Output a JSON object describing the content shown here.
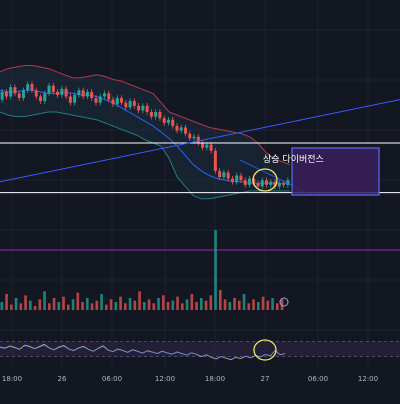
{
  "colors": {
    "background": "#131722",
    "grid": "#1e222d",
    "up": "#26a69a",
    "down": "#ef5350",
    "band": "#b2384a",
    "band_fill": "#1f3a4a",
    "ma": "#2962ff",
    "trendline": "#3d5afe",
    "level": "#ffffff",
    "box_fill": "#3a1f5c",
    "box_stroke": "#5b6cff",
    "highlight": "#f3e46a",
    "rsi": "#d9c26a",
    "rsi_band": "#2a2340",
    "axis_text": "#b2b5be",
    "annotation": "#ffffff"
  },
  "annotation": {
    "text": "상승 다이버전스"
  },
  "chart_data": {
    "type": "candlestick",
    "time_axis": {
      "ticks": [
        "18:00",
        "26",
        "06:00",
        "12:00",
        "18:00",
        "27",
        "06:00",
        "12:00"
      ]
    },
    "candles": [
      {
        "o": 68,
        "c": 73
      },
      {
        "o": 73,
        "c": 70
      },
      {
        "o": 70,
        "c": 76
      },
      {
        "o": 76,
        "c": 72
      },
      {
        "o": 72,
        "c": 69
      },
      {
        "o": 69,
        "c": 74
      },
      {
        "o": 74,
        "c": 78
      },
      {
        "o": 78,
        "c": 74
      },
      {
        "o": 74,
        "c": 70
      },
      {
        "o": 70,
        "c": 67
      },
      {
        "o": 67,
        "c": 72
      },
      {
        "o": 72,
        "c": 77
      },
      {
        "o": 77,
        "c": 73
      },
      {
        "o": 73,
        "c": 71
      },
      {
        "o": 71,
        "c": 75
      },
      {
        "o": 75,
        "c": 70
      },
      {
        "o": 70,
        "c": 66
      },
      {
        "o": 66,
        "c": 71
      },
      {
        "o": 71,
        "c": 74
      },
      {
        "o": 74,
        "c": 70
      },
      {
        "o": 70,
        "c": 73
      },
      {
        "o": 73,
        "c": 69
      },
      {
        "o": 69,
        "c": 66
      },
      {
        "o": 66,
        "c": 70
      },
      {
        "o": 70,
        "c": 72
      },
      {
        "o": 72,
        "c": 68
      },
      {
        "o": 68,
        "c": 65
      },
      {
        "o": 65,
        "c": 69
      },
      {
        "o": 69,
        "c": 66
      },
      {
        "o": 66,
        "c": 63
      },
      {
        "o": 63,
        "c": 67
      },
      {
        "o": 67,
        "c": 64
      },
      {
        "o": 64,
        "c": 61
      },
      {
        "o": 61,
        "c": 64
      },
      {
        "o": 64,
        "c": 60
      },
      {
        "o": 60,
        "c": 57
      },
      {
        "o": 57,
        "c": 60
      },
      {
        "o": 60,
        "c": 56
      },
      {
        "o": 56,
        "c": 53
      },
      {
        "o": 53,
        "c": 55
      },
      {
        "o": 55,
        "c": 51
      },
      {
        "o": 51,
        "c": 48
      },
      {
        "o": 48,
        "c": 50
      },
      {
        "o": 50,
        "c": 46
      },
      {
        "o": 46,
        "c": 43
      },
      {
        "o": 43,
        "c": 44
      },
      {
        "o": 44,
        "c": 40
      },
      {
        "o": 40,
        "c": 37
      },
      {
        "o": 37,
        "c": 39
      },
      {
        "o": 39,
        "c": 35
      },
      {
        "o": 35,
        "c": 22
      },
      {
        "o": 22,
        "c": 18
      },
      {
        "o": 18,
        "c": 21
      },
      {
        "o": 21,
        "c": 17
      },
      {
        "o": 17,
        "c": 15
      },
      {
        "o": 15,
        "c": 19
      },
      {
        "o": 19,
        "c": 16
      },
      {
        "o": 16,
        "c": 13
      },
      {
        "o": 13,
        "c": 17
      },
      {
        "o": 17,
        "c": 14
      },
      {
        "o": 14,
        "c": 12
      },
      {
        "o": 12,
        "c": 16
      },
      {
        "o": 16,
        "c": 13
      },
      {
        "o": 13,
        "c": 15
      },
      {
        "o": 15,
        "c": 12
      },
      {
        "o": 12,
        "c": 14
      },
      {
        "o": 14,
        "c": 13
      },
      {
        "o": 13,
        "c": 16
      }
    ],
    "bollinger_upper": [
      86,
      88,
      89,
      90,
      90,
      89,
      88,
      86,
      84,
      82,
      82,
      83,
      84,
      83,
      81,
      80,
      78,
      76,
      74,
      72,
      66,
      60,
      58,
      56,
      54,
      52,
      50,
      49,
      48,
      47,
      46,
      44,
      40,
      34,
      30,
      28,
      26
    ],
    "bollinger_lower": [
      60,
      58,
      57,
      57,
      58,
      59,
      60,
      60,
      59,
      58,
      57,
      56,
      55,
      53,
      51,
      49,
      47,
      45,
      42,
      40,
      38,
      30,
      18,
      12,
      6,
      4,
      4,
      5,
      6,
      7,
      8,
      9,
      9,
      9,
      9,
      9,
      9
    ],
    "ma": [
      74,
      73,
      73,
      74,
      74,
      73,
      72,
      72,
      73,
      72,
      71,
      71,
      70,
      68,
      66,
      63,
      60,
      57,
      54,
      51,
      47,
      43,
      38,
      32,
      26,
      22,
      19,
      17,
      16,
      15,
      15,
      14,
      14,
      14,
      14,
      14,
      14
    ],
    "levels": [
      40,
      8
    ],
    "trendline": {
      "from": [
        0,
        15
      ],
      "to": [
        1,
        68
      ]
    },
    "volume": [
      6,
      12,
      4,
      9,
      5,
      11,
      7,
      3,
      8,
      14,
      5,
      9,
      6,
      10,
      4,
      8,
      13,
      6,
      9,
      5,
      7,
      12,
      4,
      8,
      6,
      10,
      5,
      9,
      7,
      14,
      6,
      8,
      5,
      9,
      11,
      6,
      7,
      10,
      5,
      8,
      12,
      6,
      9,
      7,
      11,
      60,
      15,
      8,
      6,
      9,
      7,
      12,
      5,
      8,
      6,
      10,
      7,
      9,
      5,
      8
    ],
    "volume_ref_level": 45,
    "rsi": [
      55,
      52,
      58,
      54,
      49,
      60,
      57,
      51,
      56,
      62,
      53,
      48,
      55,
      59,
      50,
      46,
      53,
      57,
      49,
      44,
      52,
      58,
      47,
      43,
      50,
      46,
      41,
      48,
      44,
      39,
      45,
      42,
      38,
      44,
      40,
      36,
      42,
      38,
      34,
      40,
      36,
      30,
      35,
      28,
      24,
      30,
      26,
      22,
      28,
      25,
      31,
      27,
      33,
      29,
      36,
      32,
      46,
      35,
      38
    ],
    "rsi_band": [
      70,
      30
    ]
  }
}
